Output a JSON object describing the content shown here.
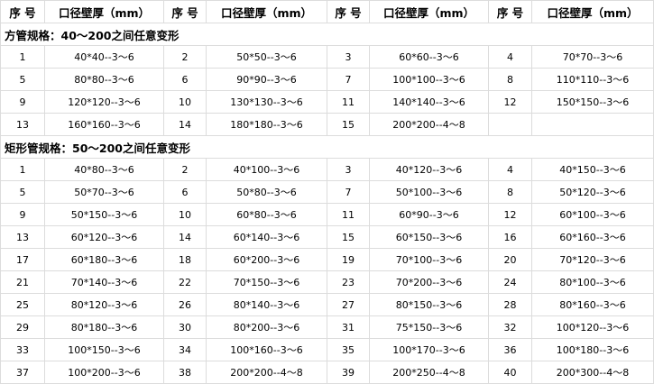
{
  "header": {
    "no_label": "序 号",
    "spec_label": "口径壁厚（mm）"
  },
  "sections": [
    {
      "title": "方管规格：40～200之间任意变形",
      "items": [
        [
          "1",
          "40*40--3～6"
        ],
        [
          "2",
          "50*50--3～6"
        ],
        [
          "3",
          "60*60--3～6"
        ],
        [
          "4",
          "70*70--3～6"
        ],
        [
          "5",
          "80*80--3～6"
        ],
        [
          "6",
          "90*90--3～6"
        ],
        [
          "7",
          "100*100--3～6"
        ],
        [
          "8",
          "110*110--3～6"
        ],
        [
          "9",
          "120*120--3～6"
        ],
        [
          "10",
          "130*130--3～6"
        ],
        [
          "11",
          "140*140--3～6"
        ],
        [
          "12",
          "150*150--3～6"
        ],
        [
          "13",
          "160*160--3～6"
        ],
        [
          "14",
          "180*180--3～6"
        ],
        [
          "15",
          "200*200--4～8"
        ]
      ]
    },
    {
      "title": "矩形管规格：50～200之间任意变形",
      "items": [
        [
          "1",
          "40*80--3～6"
        ],
        [
          "2",
          "40*100--3～6"
        ],
        [
          "3",
          "40*120--3～6"
        ],
        [
          "4",
          "40*150--3～6"
        ],
        [
          "5",
          "50*70--3～6"
        ],
        [
          "6",
          "50*80--3～6"
        ],
        [
          "7",
          "50*100--3～6"
        ],
        [
          "8",
          "50*120--3～6"
        ],
        [
          "9",
          "50*150--3～6"
        ],
        [
          "10",
          "60*80--3～6"
        ],
        [
          "11",
          "60*90--3～6"
        ],
        [
          "12",
          "60*100--3～6"
        ],
        [
          "13",
          "60*120--3～6"
        ],
        [
          "14",
          "60*140--3～6"
        ],
        [
          "15",
          "60*150--3～6"
        ],
        [
          "16",
          "60*160--3～6"
        ],
        [
          "17",
          "60*180--3～6"
        ],
        [
          "18",
          "60*200--3～6"
        ],
        [
          "19",
          "70*100--3～6"
        ],
        [
          "20",
          "70*120--3～6"
        ],
        [
          "21",
          "70*140--3～6"
        ],
        [
          "22",
          "70*150--3～6"
        ],
        [
          "23",
          "70*200--3～6"
        ],
        [
          "24",
          "80*100--3～6"
        ],
        [
          "25",
          "80*120--3～6"
        ],
        [
          "26",
          "80*140--3～6"
        ],
        [
          "27",
          "80*150--3～6"
        ],
        [
          "28",
          "80*160--3～6"
        ],
        [
          "29",
          "80*180--3～6"
        ],
        [
          "30",
          "80*200--3～6"
        ],
        [
          "31",
          "75*150--3～6"
        ],
        [
          "32",
          "100*120--3～6"
        ],
        [
          "33",
          "100*150--3～6"
        ],
        [
          "34",
          "100*160--3～6"
        ],
        [
          "35",
          "100*170--3～6"
        ],
        [
          "36",
          "100*180--3～6"
        ],
        [
          "37",
          "100*200--3～6"
        ],
        [
          "38",
          "200*200--4～8"
        ],
        [
          "39",
          "200*250--4～8"
        ],
        [
          "40",
          "200*300--4～8"
        ]
      ]
    }
  ]
}
